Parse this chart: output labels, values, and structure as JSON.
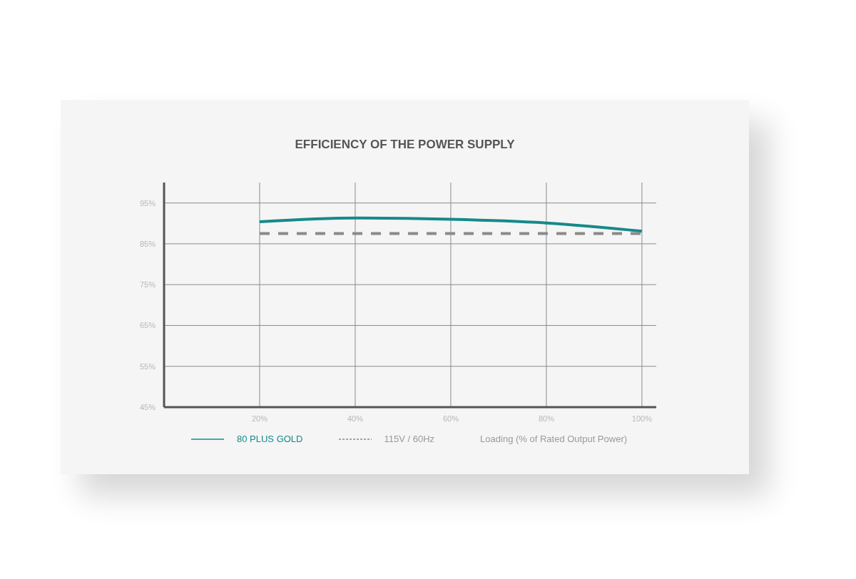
{
  "chart_data": {
    "type": "line",
    "title": "EFFICIENCY OF THE POWER SUPPLY",
    "xlabel": "Loading (% of Rated Output Power)",
    "x": [
      20,
      40,
      60,
      80,
      100
    ],
    "series": [
      {
        "name": "80 PLUS GOLD",
        "color": "#16898a",
        "line_style": "solid",
        "values": [
          90.4,
          91.3,
          91.0,
          90.1,
          88.1
        ]
      },
      {
        "name": "115V / 60Hz",
        "color": "#8a8a8a",
        "line_style": "dashed",
        "values": [
          87.5,
          87.5,
          87.5,
          87.5,
          87.5
        ]
      }
    ],
    "xlim": [
      0,
      103
    ],
    "xticks": [
      {
        "value": 20,
        "label": "20%"
      },
      {
        "value": 40,
        "label": "40%"
      },
      {
        "value": 60,
        "label": "60%"
      },
      {
        "value": 80,
        "label": "80%"
      },
      {
        "value": 100,
        "label": "100%"
      }
    ],
    "ylim": [
      45,
      100
    ],
    "yticks": [
      {
        "value": 45,
        "label": "45%"
      },
      {
        "value": 55,
        "label": "55%"
      },
      {
        "value": 65,
        "label": "65%"
      },
      {
        "value": 75,
        "label": "75%"
      },
      {
        "value": 85,
        "label": "85%"
      },
      {
        "value": 95,
        "label": "95%"
      }
    ],
    "grid": true,
    "legend": "bottom",
    "marker": "none"
  }
}
